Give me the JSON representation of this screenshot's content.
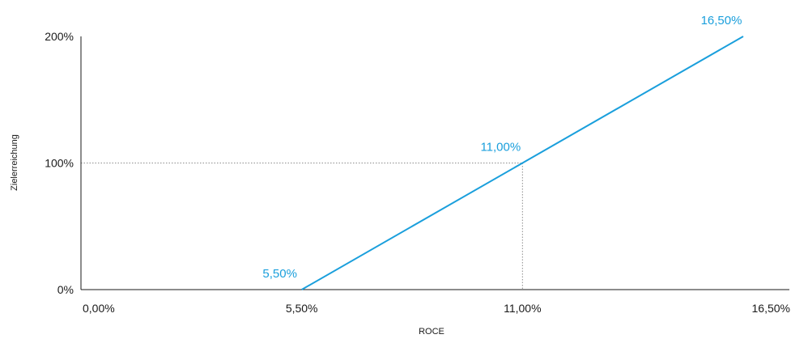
{
  "chart_data": {
    "type": "line",
    "title": "",
    "xlabel": "ROCE",
    "ylabel": "Zielerreichung",
    "x": [
      5.5,
      11.0,
      16.5
    ],
    "series": [
      {
        "values": [
          0,
          100,
          200
        ],
        "point_labels": [
          "5,50%",
          "11,00%",
          "16,50%"
        ]
      }
    ],
    "xlim": [
      0,
      16.5
    ],
    "ylim": [
      0,
      200
    ],
    "x_ticks": [
      {
        "value": 0,
        "label": "0,00%"
      },
      {
        "value": 5.5,
        "label": "5,50%"
      },
      {
        "value": 11.0,
        "label": "11,00%"
      },
      {
        "value": 16.5,
        "label": "16,50%"
      }
    ],
    "y_ticks": [
      {
        "value": 0,
        "label": "0%"
      },
      {
        "value": 100,
        "label": "100%"
      },
      {
        "value": 200,
        "label": "200%"
      }
    ],
    "reference_point": {
      "x": 11.0,
      "y": 100
    },
    "grid": false,
    "legend": "none",
    "colors": {
      "line": "#1a9fdc",
      "data_label": "#1a9fdc",
      "axis": "#1a1a1a",
      "reference": "#8c8c8c"
    }
  }
}
